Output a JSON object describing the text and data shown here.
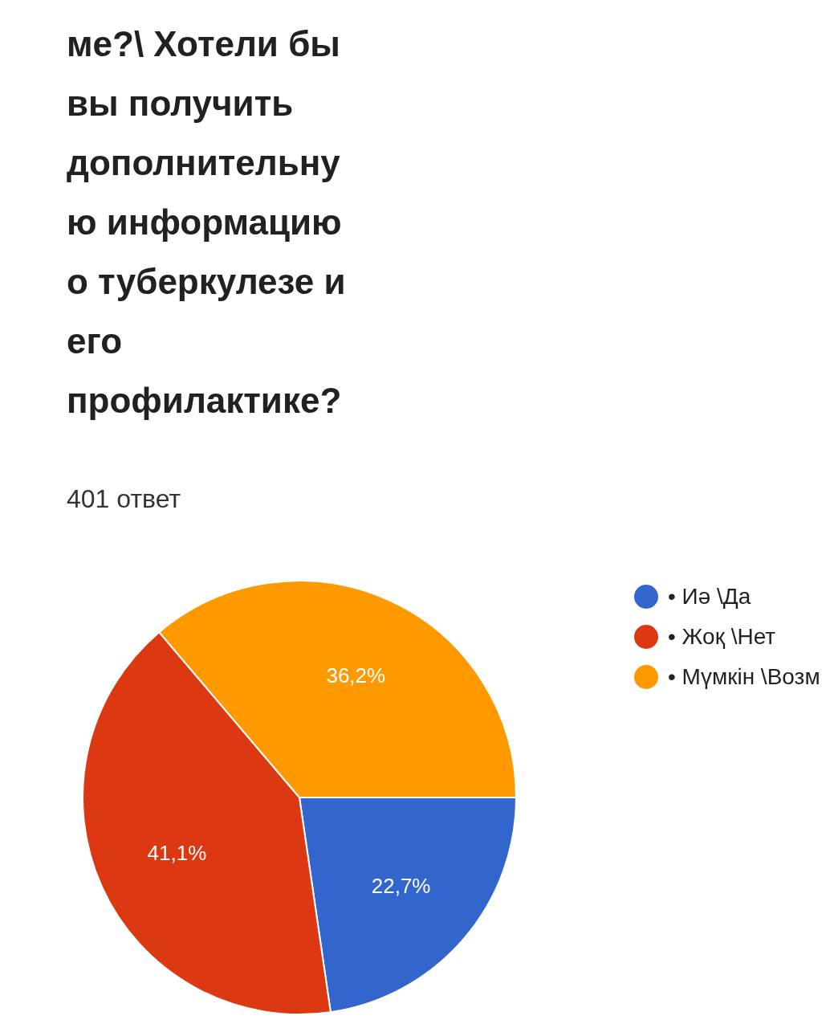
{
  "chart_data": {
    "type": "pie",
    "title": "ме?\\ Хотели бы вы получить дополнительную информацию о туберкулезе и его профилактике?",
    "subtitle": "401 ответ",
    "categories": [
      "• Иә \\Да",
      "• Жоқ \\Нет",
      "• Мүмкін \\Возм"
    ],
    "values": [
      22.7,
      41.1,
      36.2
    ],
    "value_labels": [
      "22,7%",
      "41,1%",
      "36,2%"
    ],
    "colors": [
      "#3366cc",
      "#dc3912",
      "#ff9900"
    ],
    "legend": "top right"
  }
}
